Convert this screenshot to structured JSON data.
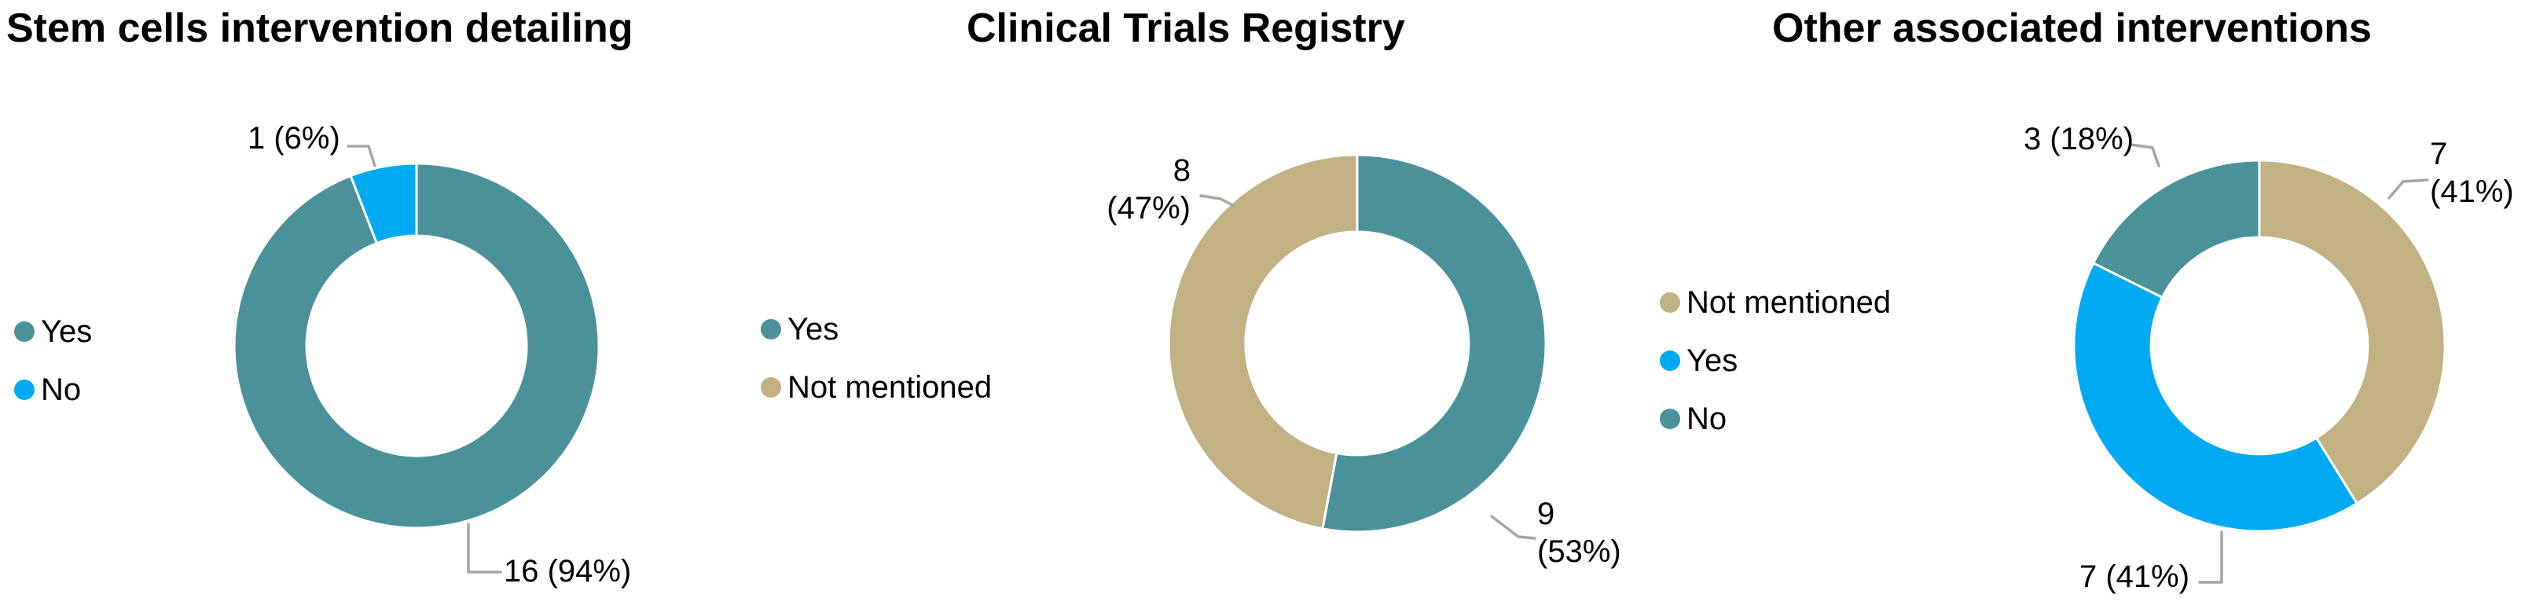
{
  "palette": {
    "teal": "#4A9199",
    "blue": "#00AAF2",
    "tan": "#C2B183",
    "leader": "#A6A6A6",
    "text": "#000000",
    "background": "#FFFFFF"
  },
  "chart_data": [
    {
      "type": "donut",
      "title": "Stem cells intervention detailing",
      "legend": [
        {
          "label": "Yes",
          "color": "teal"
        },
        {
          "label": "No",
          "color": "blue"
        }
      ],
      "slices": [
        {
          "label": "Yes",
          "value": 16,
          "pct": 94,
          "color": "teal",
          "callout": "16 (94%)"
        },
        {
          "label": "No",
          "value": 1,
          "pct": 6,
          "color": "blue",
          "callout": "1 (6%)"
        }
      ],
      "legend_position": "left",
      "labels": "count (percent)"
    },
    {
      "type": "donut",
      "title": "Clinical Trials Registry",
      "legend": [
        {
          "label": "Yes",
          "color": "teal"
        },
        {
          "label": "Not mentioned",
          "color": "tan"
        }
      ],
      "slices": [
        {
          "label": "Yes",
          "value": 9,
          "pct": 53,
          "color": "teal",
          "callout": "9\n(53%)"
        },
        {
          "label": "Not mentioned",
          "value": 8,
          "pct": 47,
          "color": "tan",
          "callout": "8\n(47%)"
        }
      ],
      "legend_position": "left",
      "labels": "count (percent)"
    },
    {
      "type": "donut",
      "title": "Other associated interventions",
      "legend": [
        {
          "label": "Not mentioned",
          "color": "tan"
        },
        {
          "label": "Yes",
          "color": "blue"
        },
        {
          "label": "No",
          "color": "teal"
        }
      ],
      "slices": [
        {
          "label": "Not mentioned",
          "value": 7,
          "pct": 41,
          "color": "tan",
          "callout": "7\n(41%)"
        },
        {
          "label": "Yes",
          "value": 7,
          "pct": 41,
          "color": "blue",
          "callout": "7 (41%)"
        },
        {
          "label": "No",
          "value": 3,
          "pct": 18,
          "color": "teal",
          "callout": "3 (18%)"
        }
      ],
      "legend_position": "left",
      "labels": "count (percent)"
    }
  ]
}
